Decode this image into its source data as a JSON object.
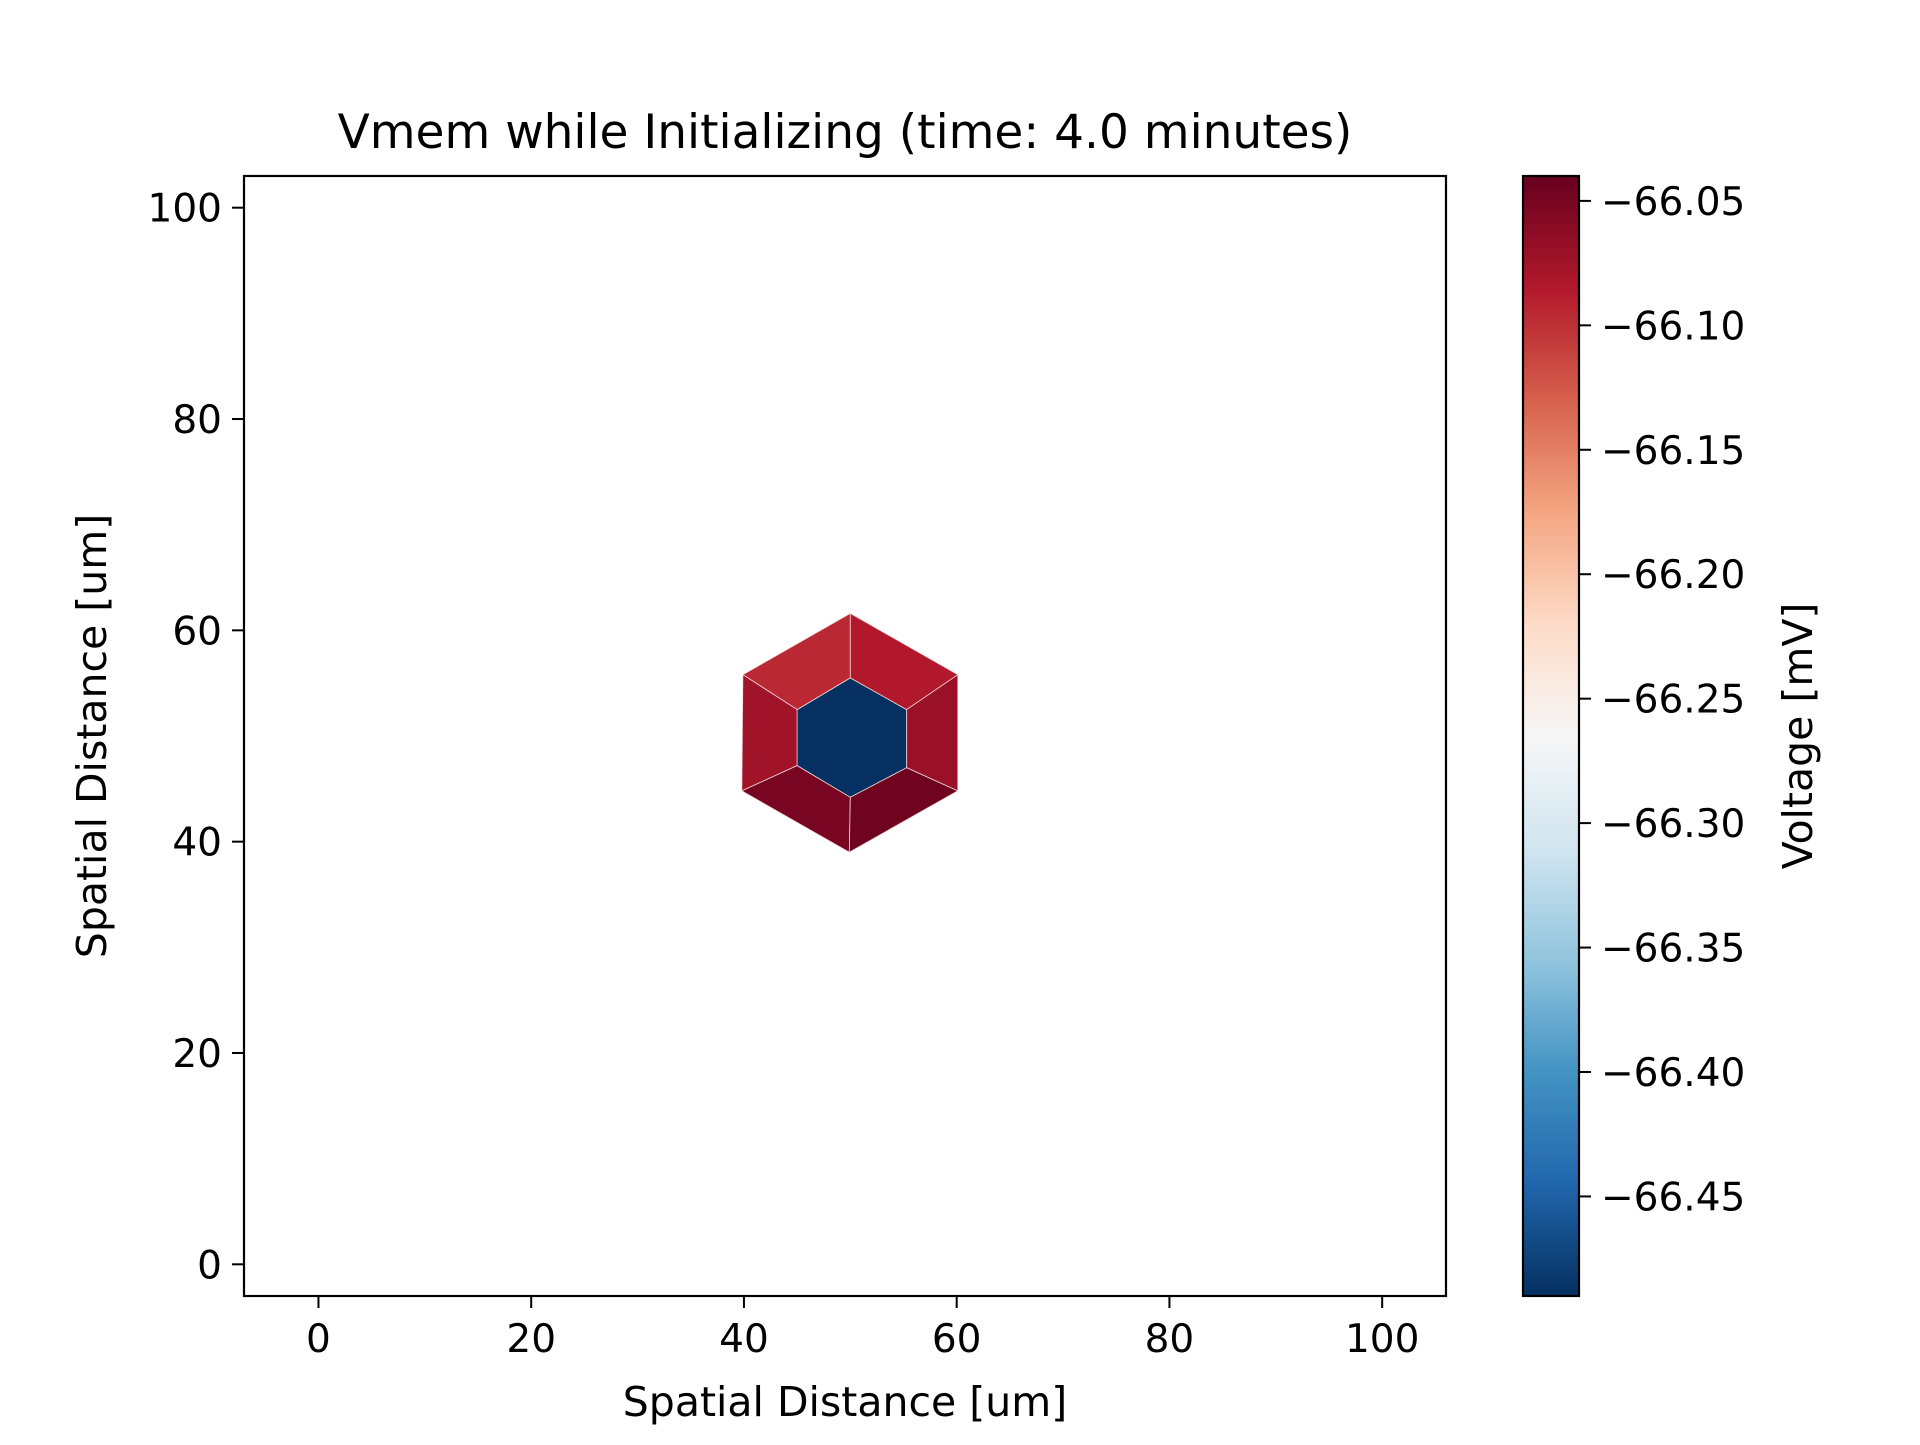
{
  "chart_data": {
    "type": "heatmap",
    "subtype": "voronoi-cell-patches",
    "title": "Vmem while Initializing (time: 4.0 minutes)",
    "xlabel": "Spatial Distance [um]",
    "ylabel": "Spatial Distance [um]",
    "xlim": [
      -7,
      106
    ],
    "ylim": [
      -3,
      103
    ],
    "xticks": [
      0,
      20,
      40,
      60,
      80,
      100
    ],
    "yticks": [
      0,
      20,
      40,
      60,
      80,
      100
    ],
    "colormap": "RdBu_r",
    "colormap_stops": [
      "#053061",
      "#2166ac",
      "#4393c3",
      "#92c5de",
      "#d1e5f0",
      "#f7f7f7",
      "#fddbc7",
      "#f4a582",
      "#d6604d",
      "#b2182b",
      "#67001f"
    ],
    "colorbar": {
      "label": "Voltage [mV]",
      "vmin": -66.49,
      "vmax": -66.04,
      "ticks": [
        -66.05,
        -66.1,
        -66.15,
        -66.2,
        -66.25,
        -66.3,
        -66.35,
        -66.4,
        -66.45
      ],
      "tick_labels": [
        "−66.05",
        "−66.10",
        "−66.15",
        "−66.20",
        "−66.25",
        "−66.30",
        "−66.35",
        "−66.40",
        "−66.45"
      ]
    },
    "cells": [
      {
        "name": "center",
        "value": -66.49,
        "points": [
          [
            50.0,
            55.5
          ],
          [
            55.3,
            52.5
          ],
          [
            55.3,
            47.0
          ],
          [
            50.0,
            44.2
          ],
          [
            45.0,
            47.2
          ],
          [
            45.0,
            52.5
          ]
        ]
      },
      {
        "name": "upper-left",
        "value": -66.095,
        "points": [
          [
            39.9,
            55.8
          ],
          [
            50.0,
            61.6
          ],
          [
            50.0,
            55.5
          ],
          [
            45.0,
            52.5
          ]
        ]
      },
      {
        "name": "upper-right",
        "value": -66.085,
        "points": [
          [
            50.0,
            61.6
          ],
          [
            60.1,
            55.8
          ],
          [
            55.3,
            52.5
          ],
          [
            50.0,
            55.5
          ]
        ]
      },
      {
        "name": "left",
        "value": -66.075,
        "points": [
          [
            39.9,
            55.8
          ],
          [
            45.0,
            52.5
          ],
          [
            45.0,
            47.2
          ],
          [
            39.8,
            44.8
          ]
        ]
      },
      {
        "name": "right",
        "value": -66.07,
        "points": [
          [
            60.1,
            55.8
          ],
          [
            60.1,
            44.8
          ],
          [
            55.3,
            47.0
          ],
          [
            55.3,
            52.5
          ]
        ]
      },
      {
        "name": "lower-left",
        "value": -66.05,
        "points": [
          [
            39.8,
            44.8
          ],
          [
            45.0,
            47.2
          ],
          [
            50.0,
            44.2
          ],
          [
            49.9,
            39.0
          ]
        ]
      },
      {
        "name": "lower-right",
        "value": -66.045,
        "points": [
          [
            49.9,
            39.0
          ],
          [
            50.0,
            44.2
          ],
          [
            55.3,
            47.0
          ],
          [
            60.1,
            44.8
          ]
        ]
      }
    ]
  }
}
